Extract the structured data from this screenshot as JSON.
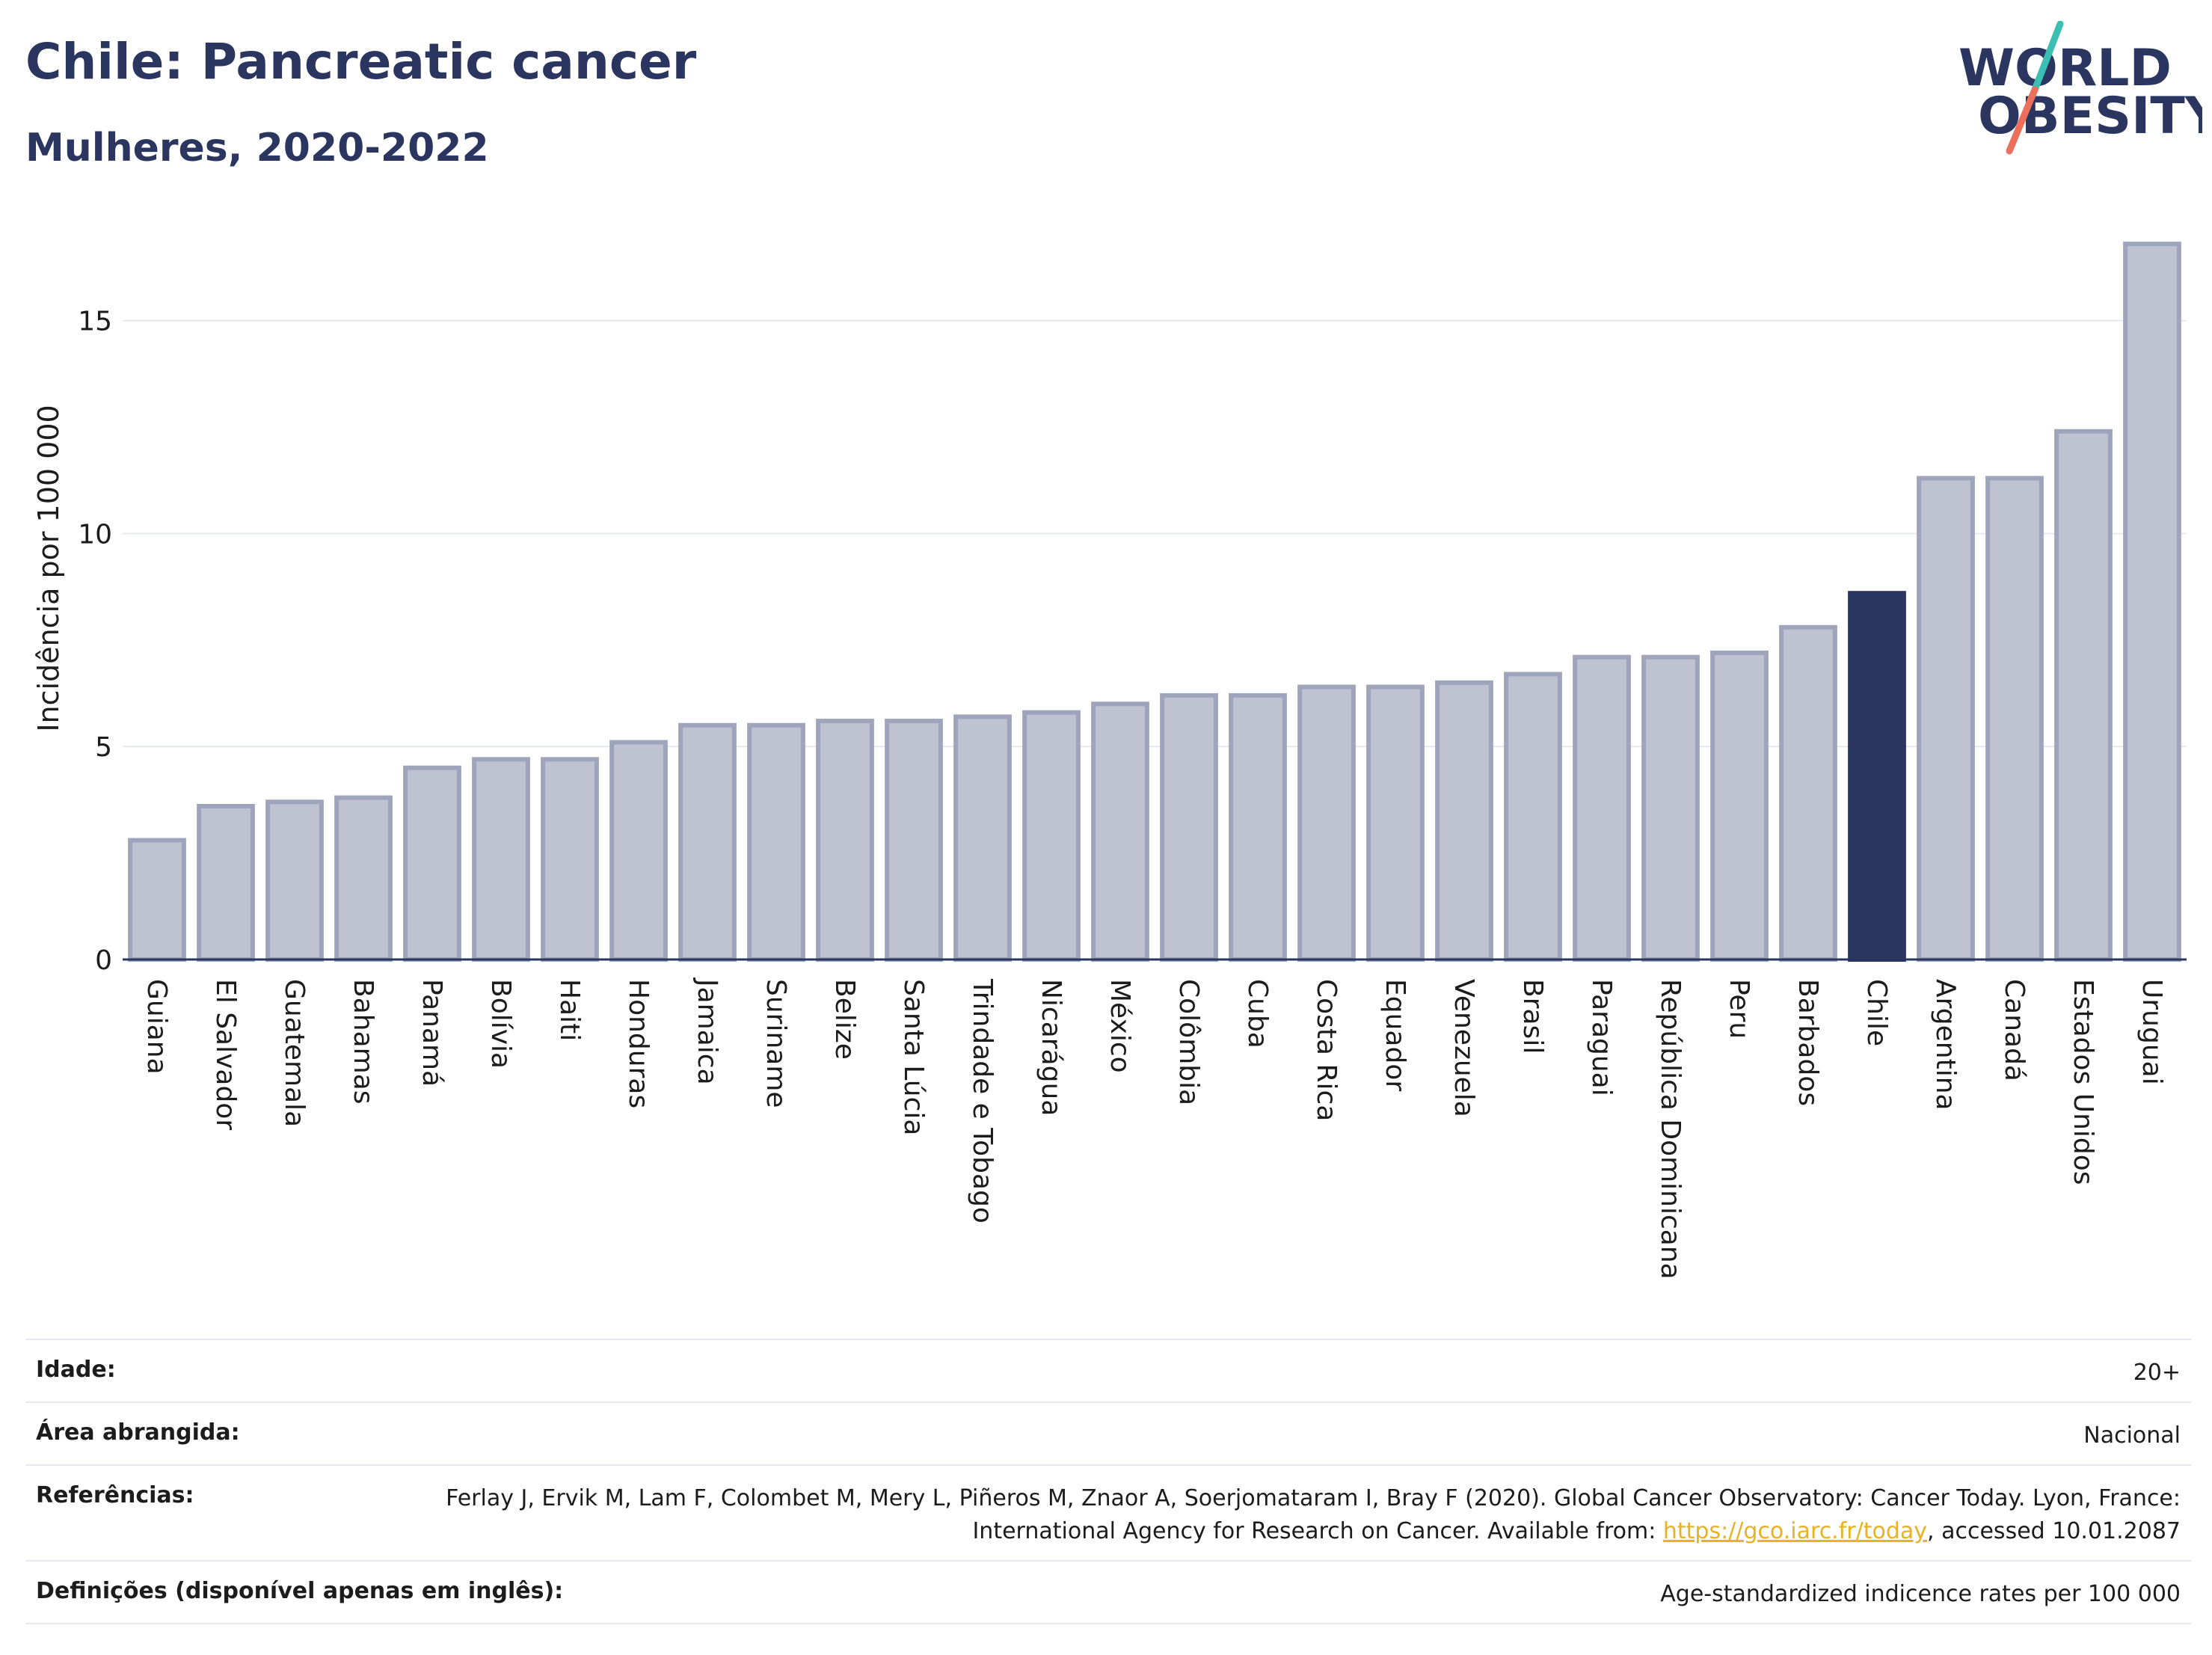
{
  "header": {
    "title": "Chile: Pancreatic cancer",
    "subtitle": "Mulheres, 2020-2022"
  },
  "logo": {
    "line1": "WORLD",
    "line2": "OBESITY",
    "icon": "world-obesity-logo"
  },
  "colors": {
    "bar": "#bfc3d1",
    "bar_border": "#9ea4bc",
    "highlight": "#2a3560",
    "text": "#2a3560",
    "grid": "#e6e8f0",
    "link": "#e8b220"
  },
  "chart_data": {
    "type": "bar",
    "categories": [
      "Guiana",
      "El Salvador",
      "Guatemala",
      "Bahamas",
      "Panamá",
      "Bolívia",
      "Haiti",
      "Honduras",
      "Jamaica",
      "Suriname",
      "Belize",
      "Santa Lúcia",
      "Trindade e Tobago",
      "Nicarágua",
      "México",
      "Colômbia",
      "Cuba",
      "Costa Rica",
      "Equador",
      "Venezuela",
      "Brasil",
      "Paraguai",
      "República Dominicana",
      "Peru",
      "Barbados",
      "Chile",
      "Argentina",
      "Canadá",
      "Estados Unidos",
      "Uruguai"
    ],
    "values": [
      2.8,
      3.6,
      3.7,
      3.8,
      4.5,
      4.7,
      4.7,
      5.1,
      5.5,
      5.5,
      5.6,
      5.6,
      5.7,
      5.8,
      6.0,
      6.2,
      6.2,
      6.4,
      6.4,
      6.5,
      6.7,
      7.1,
      7.1,
      7.2,
      7.8,
      8.6,
      11.3,
      11.3,
      12.4,
      16.8
    ],
    "highlight": "Chile",
    "ylabel": "Incidência por 100 000",
    "yticks": [
      0,
      5,
      10,
      15
    ],
    "ylim": [
      0,
      17.4
    ],
    "grid": true
  },
  "meta": [
    {
      "label": "Idade:",
      "value": "20+"
    },
    {
      "label": "Área abrangida:",
      "value": "Nacional"
    },
    {
      "label": "Referências:",
      "value_pre": "Ferlay J, Ervik M, Lam F, Colombet M, Mery L, Piñeros M, Znaor A, Soerjomataram I, Bray F (2020). Global Cancer Observatory: Cancer Today. Lyon, France: International Agency for Research on Cancer. Available from: ",
      "link": "https://gco.iarc.fr/today",
      "value_post": ", accessed 10.01.2087"
    },
    {
      "label": "Definições (disponível apenas em inglês):",
      "value": "Age-standardized indicence rates per 100 000"
    }
  ]
}
